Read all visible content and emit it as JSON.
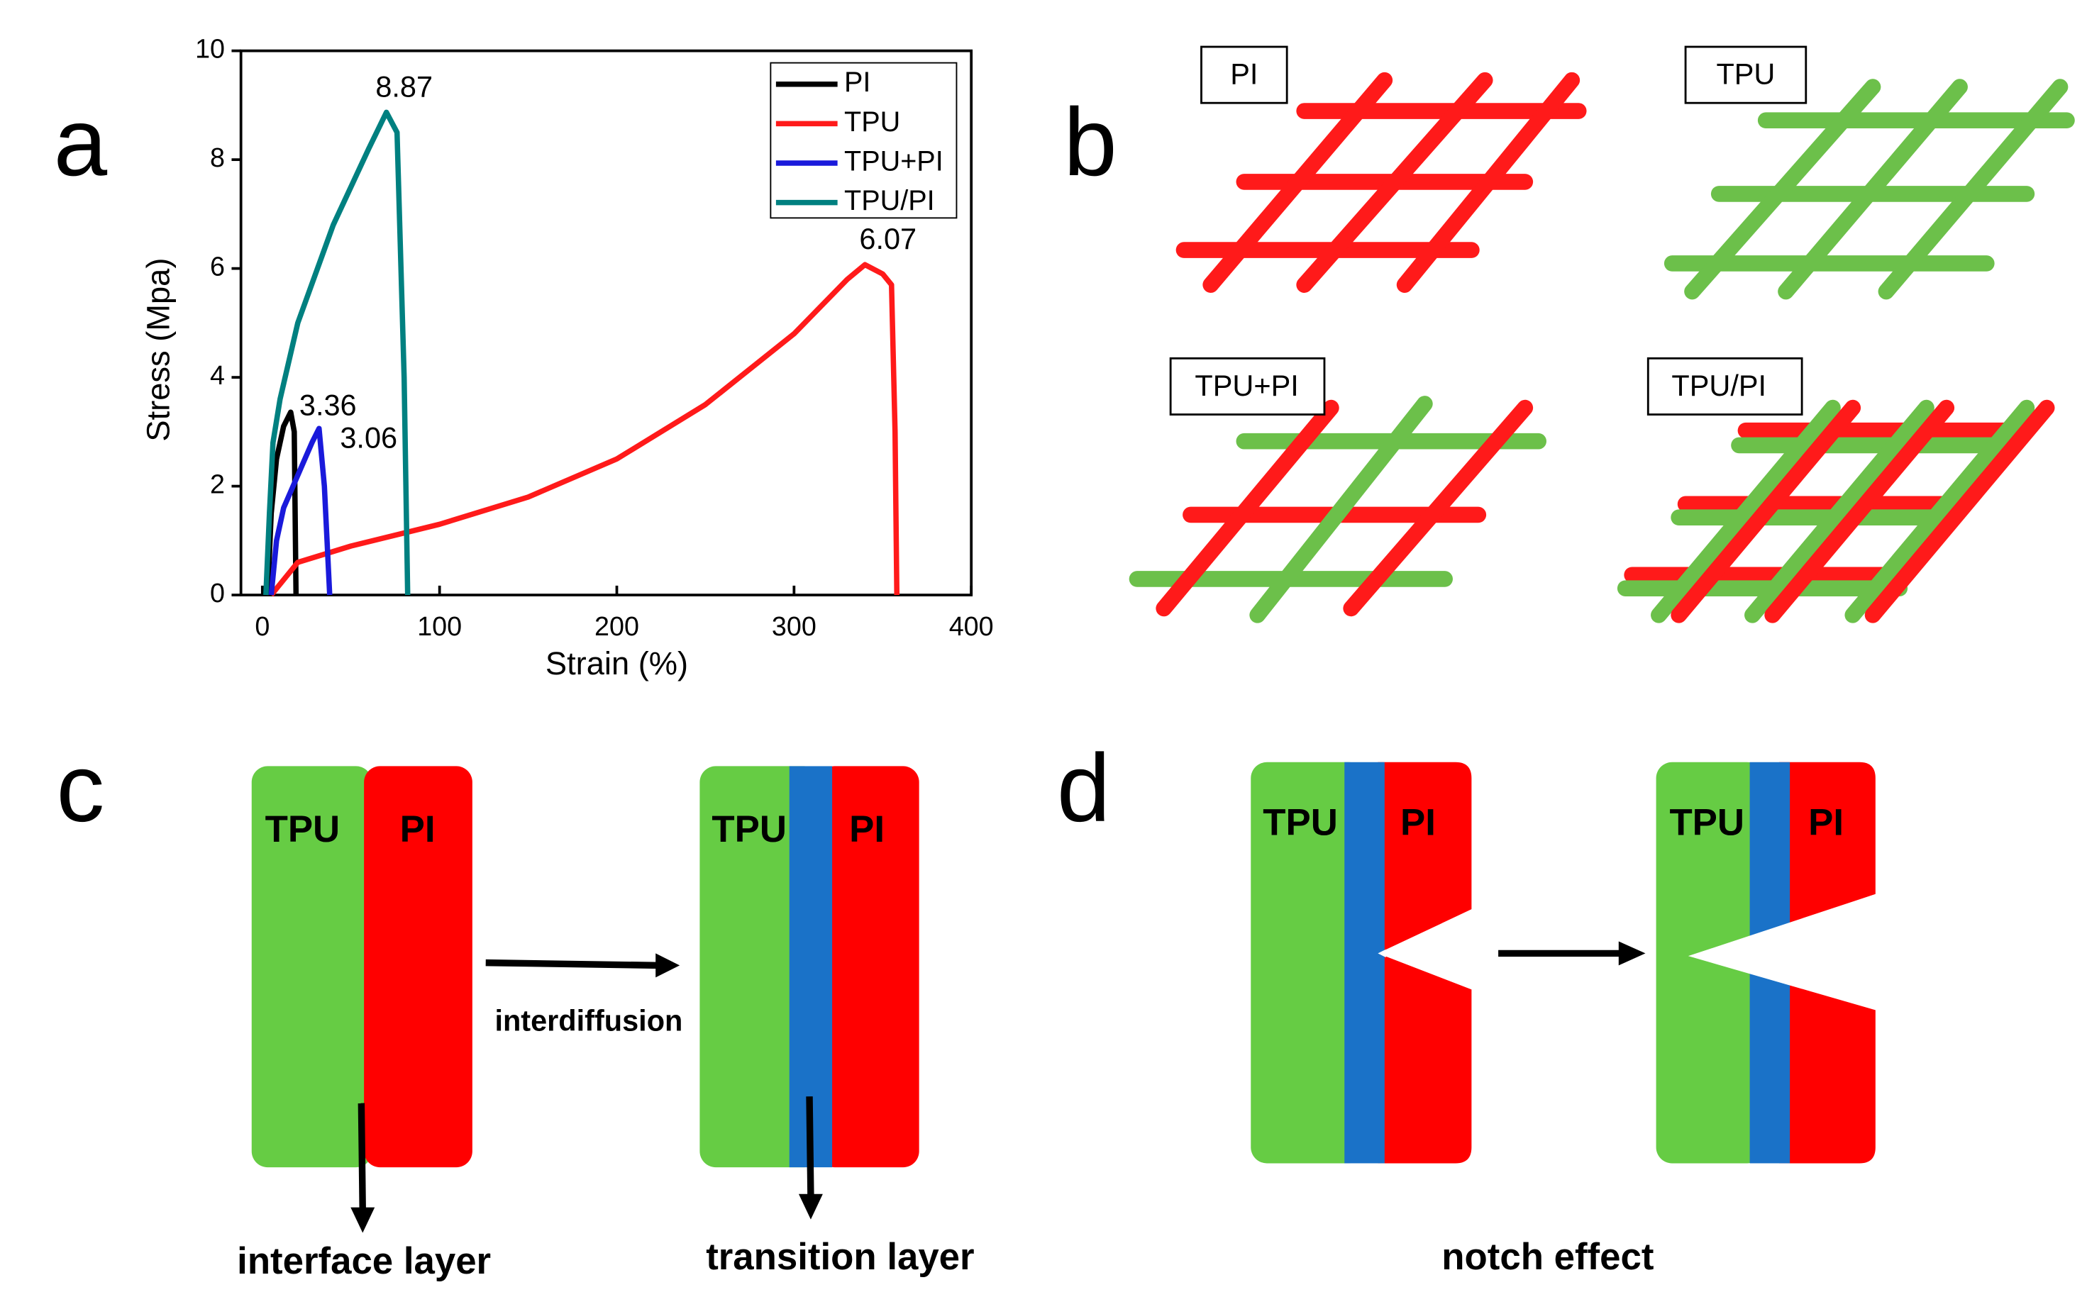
{
  "chart_data": {
    "type": "line",
    "xlabel": "Strain (%)",
    "ylabel": "Stress (Mpa)",
    "xlim": [
      0,
      400
    ],
    "ylim": [
      0,
      10
    ],
    "xticks": [
      0,
      100,
      200,
      300,
      400
    ],
    "yticks": [
      0,
      2,
      4,
      6,
      8,
      10
    ],
    "legend": "upper right",
    "series": [
      {
        "name": "PI",
        "color": "#000000",
        "x": [
          3,
          5,
          8,
          12,
          16,
          18,
          19
        ],
        "values": [
          0,
          1.5,
          2.5,
          3.1,
          3.36,
          3.0,
          0
        ]
      },
      {
        "name": "TPU",
        "color": "#ff1a1a",
        "x": [
          5,
          20,
          50,
          100,
          150,
          200,
          250,
          300,
          330,
          340,
          350,
          355,
          357,
          358
        ],
        "values": [
          0,
          0.6,
          0.9,
          1.3,
          1.8,
          2.5,
          3.5,
          4.8,
          5.8,
          6.07,
          5.9,
          5.7,
          3,
          0
        ]
      },
      {
        "name": "TPU+PI",
        "color": "#1a1adb",
        "x": [
          5,
          8,
          12,
          20,
          28,
          32,
          35,
          38
        ],
        "values": [
          0,
          1.0,
          1.6,
          2.2,
          2.8,
          3.06,
          2.0,
          0
        ]
      },
      {
        "name": "TPU/PI",
        "color": "#008080",
        "x": [
          2,
          4,
          6,
          10,
          20,
          40,
          60,
          70,
          76,
          80,
          82
        ],
        "values": [
          0,
          1.5,
          2.8,
          3.6,
          5.0,
          6.8,
          8.2,
          8.87,
          8.5,
          4,
          0
        ]
      }
    ],
    "annotations": [
      {
        "text": "8.87",
        "x": 80,
        "y": 9.3
      },
      {
        "text": "6.07",
        "x": 353,
        "y": 6.5
      },
      {
        "text": "3.36",
        "x": 37,
        "y": 3.45
      },
      {
        "text": "3.06",
        "x": 60,
        "y": 2.85
      }
    ]
  },
  "panels": {
    "a": "a",
    "b": "b",
    "c": "c",
    "d": "d",
    "b_labels": [
      "PI",
      "TPU",
      "TPU+PI",
      "TPU/PI"
    ],
    "c_left": [
      "TPU",
      "PI"
    ],
    "c_right": [
      "TPU",
      "PI"
    ],
    "c_arrow": "interdiffusion",
    "c_caption_left": "interface layer",
    "c_caption_right": "transition layer",
    "d_left": [
      "TPU",
      "PI"
    ],
    "d_right": [
      "TPU",
      "PI"
    ],
    "d_caption": "notch effect"
  }
}
